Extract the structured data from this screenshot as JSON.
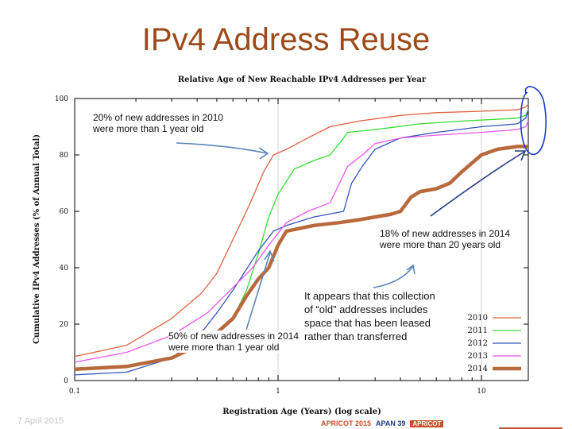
{
  "slide": {
    "title": "IPv4 Address Reuse"
  },
  "chart_data": {
    "type": "line",
    "title": "Relative Age of New Reachable IPv4 Addresses per Year",
    "xlabel": "Registration Age (Years) (log scale)",
    "ylabel": "Cumulative IPv4 Addresses (% of Annual Total)",
    "x_scale": "log",
    "xlim": [
      0.1,
      17
    ],
    "ylim": [
      0,
      100
    ],
    "x_ticks": [
      "0.1",
      "1",
      "10"
    ],
    "y_ticks": [
      "0",
      "20",
      "40",
      "60",
      "80",
      "100"
    ],
    "grid": true,
    "legend_position": "bottom-right",
    "series": [
      {
        "name": "2010",
        "color": "#e06040",
        "width": 1.3,
        "x": [
          0.1,
          0.18,
          0.3,
          0.42,
          0.5,
          0.6,
          0.72,
          0.85,
          0.95,
          1.1,
          1.4,
          1.8,
          2.5,
          4,
          6,
          10,
          15,
          16.5,
          17
        ],
        "y": [
          8.5,
          12.5,
          22,
          31,
          38,
          50,
          62,
          74,
          80,
          82,
          86,
          90,
          92,
          94,
          95,
          95.5,
          96,
          97,
          98
        ]
      },
      {
        "name": "2011",
        "color": "#33dd33",
        "width": 1.3,
        "x": [
          0.1,
          0.18,
          0.3,
          0.45,
          0.6,
          0.7,
          0.8,
          0.9,
          1.0,
          1.2,
          1.5,
          1.8,
          2.0,
          2.2,
          3,
          5,
          8,
          15,
          16.5,
          17
        ],
        "y": [
          4,
          5,
          8,
          14,
          22,
          32,
          45,
          58,
          66,
          75,
          78,
          80,
          84,
          88,
          89,
          91,
          92,
          93,
          94,
          96
        ]
      },
      {
        "name": "2012",
        "color": "#3355bb",
        "width": 1.3,
        "x": [
          0.1,
          0.18,
          0.3,
          0.4,
          0.5,
          0.6,
          0.8,
          0.95,
          1.1,
          1.5,
          2.1,
          2.3,
          2.6,
          3,
          4,
          6,
          10,
          15,
          16.5,
          17
        ],
        "y": [
          2,
          3,
          8,
          15,
          24,
          32,
          46,
          53,
          55,
          58,
          60,
          70,
          76,
          82,
          86,
          88,
          90,
          91,
          93,
          96
        ]
      },
      {
        "name": "2013",
        "color": "#ee55ee",
        "width": 1.3,
        "x": [
          0.1,
          0.18,
          0.3,
          0.45,
          0.6,
          0.75,
          0.9,
          1.1,
          1.4,
          1.8,
          2.2,
          2.6,
          3,
          4,
          6,
          10,
          15,
          16.5,
          17
        ],
        "y": [
          6.5,
          10,
          16,
          24,
          33,
          40,
          48,
          56,
          60,
          63,
          76,
          80,
          84,
          86,
          87,
          88,
          89,
          90,
          92
        ]
      },
      {
        "name": "2014",
        "color": "#b86a3c",
        "width": 4.5,
        "x": [
          0.1,
          0.18,
          0.3,
          0.45,
          0.6,
          0.7,
          0.8,
          0.9,
          1.0,
          1.1,
          1.5,
          2.0,
          2.5,
          3,
          3.6,
          4,
          4.5,
          5,
          6,
          7,
          8,
          10,
          12,
          15,
          17
        ],
        "y": [
          4,
          5,
          8,
          14,
          22,
          30,
          36,
          40,
          48,
          53,
          55,
          56,
          57,
          58,
          59,
          60,
          65,
          67,
          68,
          70,
          74,
          80,
          82,
          83,
          83
        ]
      }
    ]
  },
  "annotations": {
    "a2010": "20% of new addresses in 2010 were more than 1 year old",
    "a2014_old": "18% of new addresses in 2014 were more than 20 years old",
    "a2014_new": "50% of new addresses in 2014 were more than 1 year old",
    "note": "It appears that this collection of “old” addresses includes space that has been leased rather than transferred"
  },
  "footer": {
    "date": "7 April 2015",
    "logos": [
      "APRICOT 2015",
      "APAN 39",
      "APRICOT"
    ]
  }
}
